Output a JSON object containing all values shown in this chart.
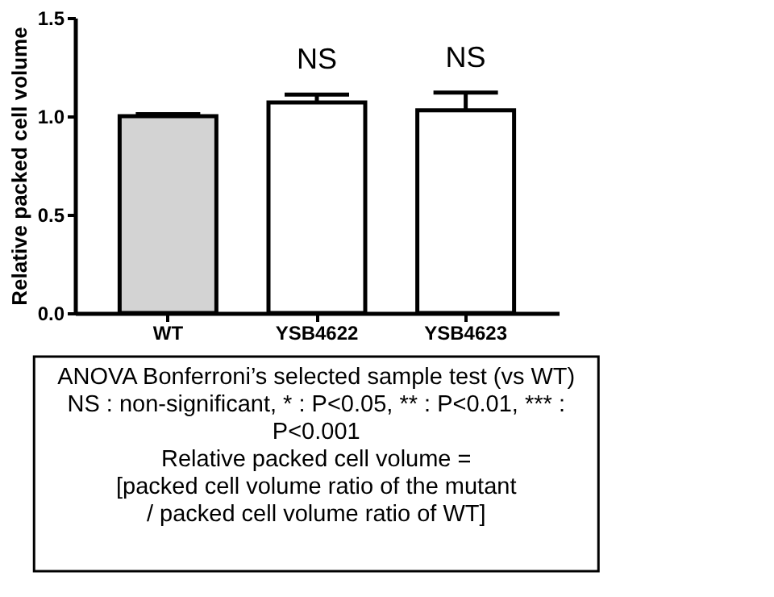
{
  "chart_data": {
    "type": "bar",
    "ylabel": "Relative packed cell volume",
    "categories": [
      "WT",
      "YSB4622",
      "YSB4623"
    ],
    "values": [
      1.0,
      1.07,
      1.03
    ],
    "colors": [
      "#d3d3d3",
      "#ffffff",
      "#ffffff"
    ],
    "errors": [
      [
        1.0,
        1.01
      ],
      [
        1.07,
        1.11
      ],
      [
        1.03,
        1.12
      ]
    ],
    "ylim": [
      0,
      1.5
    ],
    "yticks": [
      {
        "value": 0,
        "label": "0.0"
      },
      {
        "value": 0.5,
        "label": "0.5"
      },
      {
        "value": 1,
        "label": "1.0"
      },
      {
        "value": 1.5,
        "label": "1.5"
      }
    ],
    "grid": false,
    "annotations": [
      {
        "text": "NS",
        "x": "YSB4622",
        "y": 1.11
      },
      {
        "text": "NS",
        "x": "YSB4623",
        "y": 1.12
      },
      "ANOVA Bonferroni’s selected sample test (vs WT)\nNS : non-significant, * : P<0.05, ** : P<0.01, *** :\nP<0.001\n\nRelative packed cell volume =\n[packed cell volume ratio of the mutant\n/ packed cell volume ratio of WT]"
    ]
  }
}
